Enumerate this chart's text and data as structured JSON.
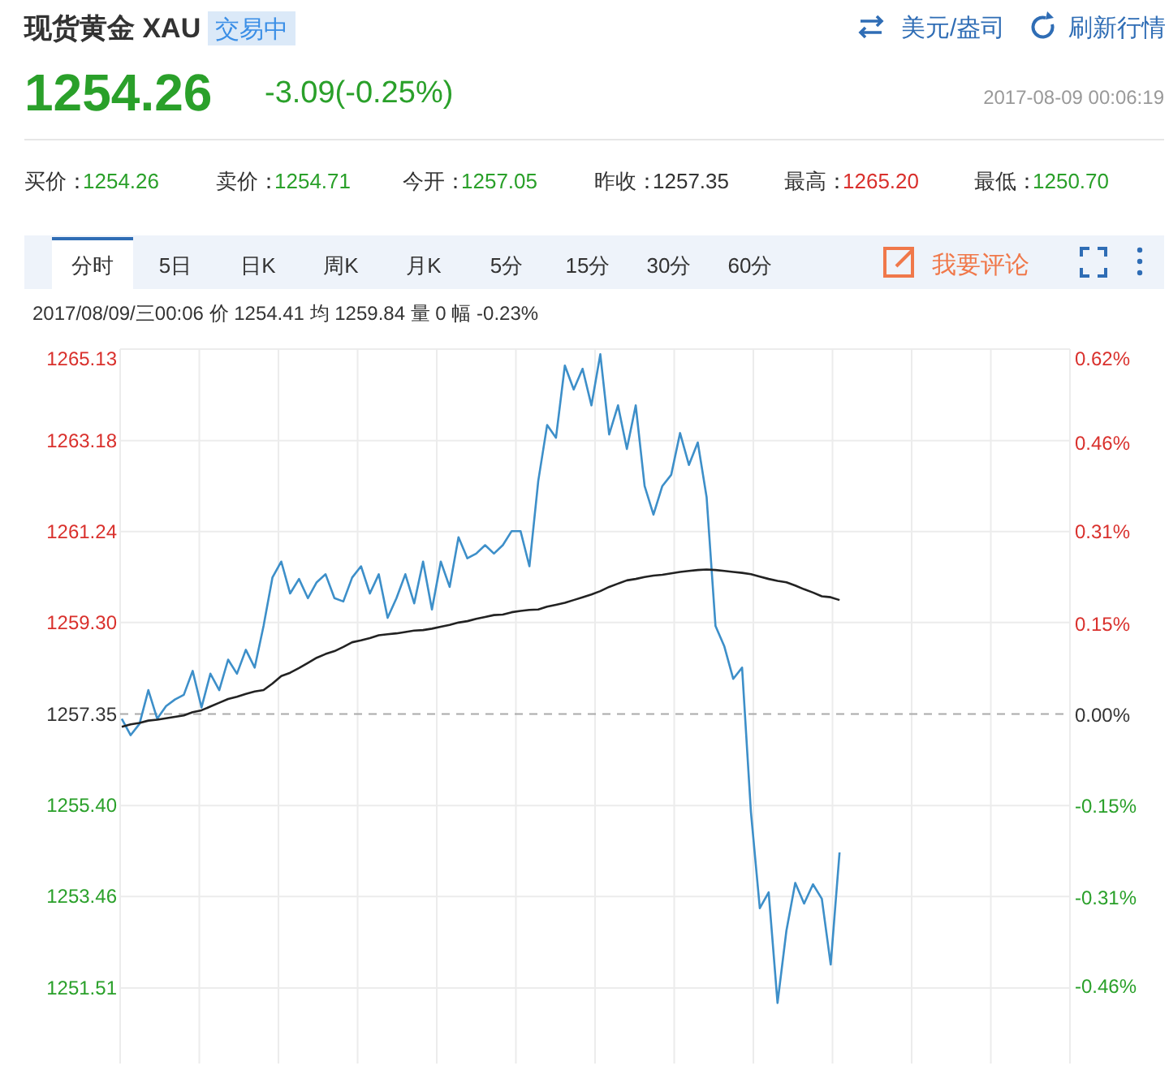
{
  "chart_data": {
    "type": "line",
    "title": "现货黄金 XAU",
    "subtitle": "交易中",
    "annotations": [
      "美元/盎司",
      "刷新行情",
      "1254.26",
      "-3.09(-0.25%)",
      "2017-08-09 00:06:19",
      "买价：",
      "1254.26",
      "卖价：",
      "1254.71",
      "今开：",
      "1257.05",
      "昨收：",
      "1257.35",
      "最高：",
      "1265.20",
      "最低：",
      "1250.70",
      "分时",
      "5日",
      "日K",
      "周K",
      "月K",
      "5分",
      "15分",
      "30分",
      "60分",
      "我要评论",
      "2017/08/09/三00:06  价 1254.41  均 1259.84  量 0  幅 -0.23%"
    ],
    "categories": [
      null,
      null,
      null,
      null,
      null,
      null,
      null,
      null,
      null,
      null,
      null,
      null,
      null,
      null,
      null,
      null,
      null,
      null,
      null,
      null,
      null,
      null,
      null,
      null,
      null,
      null,
      null,
      null,
      null,
      null,
      null,
      null,
      null,
      null,
      null,
      null,
      null,
      null,
      null,
      null,
      null,
      null,
      null,
      null,
      null,
      null,
      null,
      null,
      null,
      null,
      null,
      null,
      null,
      null,
      null,
      null,
      null,
      null,
      null,
      null,
      null,
      null,
      null,
      null,
      null,
      null,
      null,
      null,
      null,
      null,
      null,
      null,
      null,
      null,
      null,
      null,
      null,
      null,
      null,
      null,
      null,
      null,
      null,
      null,
      null,
      null,
      null,
      null,
      null,
      null,
      null,
      null,
      null,
      null,
      null,
      null,
      null,
      null,
      null,
      null,
      null,
      null,
      null,
      null,
      null,
      null,
      null,
      null
    ],
    "series": [
      {
        "color": "#3d8fc9",
        "values": [
          1257.25,
          1256.9,
          1257.14,
          1257.86,
          1257.25,
          1257.52,
          1257.66,
          1257.76,
          1258.27,
          1257.49,
          1258.21,
          1257.86,
          1258.51,
          1258.21,
          1258.72,
          1258.34,
          1259.23,
          1260.26,
          1260.6,
          1259.92,
          1260.23,
          1259.82,
          1260.16,
          1260.33,
          1259.82,
          1259.75,
          1260.26,
          1260.5,
          1259.92,
          1260.33,
          1259.4,
          1259.82,
          1260.33,
          1259.71,
          1260.6,
          1259.58,
          1260.6,
          1260.06,
          1261.12,
          1260.67,
          1260.77,
          1260.95,
          1260.77,
          1260.95,
          1261.25,
          1261.25,
          1260.5,
          1262.32,
          1263.51,
          1263.24,
          1264.78,
          1264.27,
          1264.71,
          1263.93,
          1265.02,
          1263.31,
          1263.93,
          1263.0,
          1263.93,
          1262.21,
          1261.6,
          1262.21,
          1262.45,
          1263.34,
          1262.66,
          1263.14,
          1261.97,
          1259.23,
          1258.79,
          1258.1,
          1258.34,
          1255.26,
          1253.21,
          1253.55,
          1251.19,
          1252.73,
          1253.75,
          1253.31,
          1253.72,
          1253.41,
          1252.01,
          1254.4,
          null,
          null,
          null,
          null,
          null,
          null,
          null,
          null,
          null,
          null,
          null,
          null,
          null,
          null,
          null,
          null,
          null,
          null,
          null,
          null,
          null,
          null,
          null,
          null,
          null,
          null
        ]
      },
      {
        "color": "#222222",
        "values": [
          1257.08,
          1257.13,
          1257.16,
          1257.21,
          1257.23,
          1257.26,
          1257.29,
          1257.32,
          1257.39,
          1257.43,
          1257.51,
          1257.59,
          1257.67,
          1257.72,
          1257.78,
          1257.83,
          1257.86,
          1258.0,
          1258.16,
          1258.23,
          1258.33,
          1258.44,
          1258.55,
          1258.63,
          1258.69,
          1258.78,
          1258.88,
          1258.92,
          1258.97,
          1259.03,
          1259.05,
          1259.07,
          1259.1,
          1259.13,
          1259.14,
          1259.17,
          1259.21,
          1259.25,
          1259.3,
          1259.33,
          1259.38,
          1259.42,
          1259.46,
          1259.47,
          1259.52,
          1259.55,
          1259.57,
          1259.58,
          1259.64,
          1259.68,
          1259.72,
          1259.78,
          1259.84,
          1259.9,
          1259.97,
          1260.06,
          1260.13,
          1260.2,
          1260.23,
          1260.27,
          1260.3,
          1260.32,
          1260.35,
          1260.38,
          1260.4,
          1260.42,
          1260.43,
          1260.42,
          1260.4,
          1260.38,
          1260.36,
          1260.33,
          1260.28,
          1260.23,
          1260.19,
          1260.16,
          1260.09,
          1260.01,
          1259.94,
          1259.86,
          1259.84,
          1259.78,
          null,
          null,
          null,
          null,
          null,
          null,
          null,
          null,
          null,
          null,
          null,
          null,
          null,
          null,
          null,
          null,
          null,
          null,
          null,
          null,
          null,
          null,
          null,
          null,
          null,
          null
        ]
      }
    ],
    "ylim": [
      1249.9,
      1265.13
    ],
    "yticks": [
      {
        "value": 1265.13,
        "label": "1265.13"
      },
      {
        "value": 1263.18,
        "label": "1263.18"
      },
      {
        "value": 1261.24,
        "label": "1261.24"
      },
      {
        "value": 1259.3,
        "label": "1259.30"
      },
      {
        "value": 1257.35,
        "label": "1257.35"
      },
      {
        "value": 1255.4,
        "label": "1255.40"
      },
      {
        "value": 1253.46,
        "label": "1253.46"
      },
      {
        "value": 1251.51,
        "label": "1251.51"
      }
    ],
    "y2lim": [
      -0.59,
      0.62
    ],
    "y2ticks": [
      {
        "value": 0.62,
        "label": "0.62%"
      },
      {
        "value": 0.46,
        "label": "0.46%"
      },
      {
        "value": 0.31,
        "label": "0.31%"
      },
      {
        "value": 0.154,
        "label": "0.15%"
      },
      {
        "value": 0,
        "label": "0.00%"
      },
      {
        "value": -0.154,
        "label": "-0.15%"
      },
      {
        "value": -0.31,
        "label": "-0.31%"
      },
      {
        "value": -0.46,
        "label": "-0.46%"
      }
    ],
    "ref_lines": [
      {
        "axis": "y",
        "value": 1257.35,
        "color": "#aaaaaa",
        "line_style": "dashed"
      }
    ],
    "grid": true
  }
}
